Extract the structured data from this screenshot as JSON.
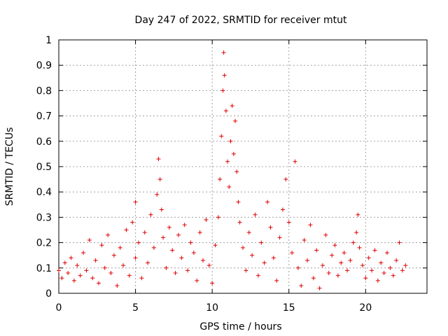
{
  "chart_data": {
    "type": "scatter",
    "title": "Day 247 of 2022, SRMTID for receiver mtut",
    "xlabel": "GPS time / hours",
    "ylabel": "SRMTID / TECUs",
    "xlim": [
      0,
      24
    ],
    "ylim": [
      0,
      1
    ],
    "xticks": [
      0,
      5,
      10,
      15,
      20
    ],
    "xtick_labels": [
      "0",
      "5",
      "10",
      "15",
      "20"
    ],
    "yticks": [
      0,
      0.1,
      0.2,
      0.3,
      0.4,
      0.5,
      0.6,
      0.7,
      0.8,
      0.9,
      1
    ],
    "ytick_labels": [
      "0",
      "0.1",
      "0.2",
      "0.3",
      "0.4",
      "0.5",
      "0.6",
      "0.7",
      "0.8",
      "0.9",
      "1"
    ],
    "grid": true,
    "marker": "+",
    "color": "#e00000",
    "series": [
      {
        "name": "SRMTID",
        "points": [
          [
            0.0,
            0.09
          ],
          [
            0.2,
            0.06
          ],
          [
            0.4,
            0.12
          ],
          [
            0.6,
            0.08
          ],
          [
            0.8,
            0.14
          ],
          [
            1.0,
            0.05
          ],
          [
            1.2,
            0.11
          ],
          [
            1.4,
            0.07
          ],
          [
            1.6,
            0.16
          ],
          [
            1.8,
            0.09
          ],
          [
            2.0,
            0.21
          ],
          [
            2.2,
            0.06
          ],
          [
            2.4,
            0.13
          ],
          [
            2.6,
            0.04
          ],
          [
            2.8,
            0.19
          ],
          [
            3.0,
            0.1
          ],
          [
            3.2,
            0.23
          ],
          [
            3.4,
            0.08
          ],
          [
            3.6,
            0.15
          ],
          [
            3.8,
            0.03
          ],
          [
            4.0,
            0.18
          ],
          [
            4.2,
            0.11
          ],
          [
            4.4,
            0.25
          ],
          [
            4.6,
            0.07
          ],
          [
            4.8,
            0.28
          ],
          [
            5.0,
            0.14
          ],
          [
            5.0,
            0.36
          ],
          [
            5.2,
            0.2
          ],
          [
            5.4,
            0.06
          ],
          [
            5.6,
            0.24
          ],
          [
            5.8,
            0.12
          ],
          [
            6.0,
            0.31
          ],
          [
            6.2,
            0.18
          ],
          [
            6.4,
            0.39
          ],
          [
            6.5,
            0.53
          ],
          [
            6.6,
            0.45
          ],
          [
            6.7,
            0.33
          ],
          [
            6.8,
            0.22
          ],
          [
            7.0,
            0.1
          ],
          [
            7.2,
            0.26
          ],
          [
            7.4,
            0.17
          ],
          [
            7.6,
            0.08
          ],
          [
            7.8,
            0.23
          ],
          [
            8.0,
            0.14
          ],
          [
            8.2,
            0.27
          ],
          [
            8.4,
            0.09
          ],
          [
            8.6,
            0.2
          ],
          [
            8.8,
            0.16
          ],
          [
            9.0,
            0.05
          ],
          [
            9.2,
            0.24
          ],
          [
            9.4,
            0.13
          ],
          [
            9.6,
            0.29
          ],
          [
            9.8,
            0.11
          ],
          [
            10.0,
            0.04
          ],
          [
            10.2,
            0.19
          ],
          [
            10.4,
            0.3
          ],
          [
            10.5,
            0.45
          ],
          [
            10.6,
            0.62
          ],
          [
            10.7,
            0.8
          ],
          [
            10.75,
            0.95
          ],
          [
            10.8,
            0.86
          ],
          [
            10.9,
            0.72
          ],
          [
            11.0,
            0.52
          ],
          [
            11.1,
            0.42
          ],
          [
            11.2,
            0.6
          ],
          [
            11.3,
            0.74
          ],
          [
            11.4,
            0.55
          ],
          [
            11.5,
            0.68
          ],
          [
            11.6,
            0.48
          ],
          [
            11.7,
            0.36
          ],
          [
            11.8,
            0.28
          ],
          [
            12.0,
            0.18
          ],
          [
            12.2,
            0.09
          ],
          [
            12.4,
            0.24
          ],
          [
            12.6,
            0.15
          ],
          [
            12.8,
            0.31
          ],
          [
            13.0,
            0.07
          ],
          [
            13.2,
            0.2
          ],
          [
            13.4,
            0.12
          ],
          [
            13.6,
            0.36
          ],
          [
            13.8,
            0.26
          ],
          [
            14.0,
            0.14
          ],
          [
            14.2,
            0.05
          ],
          [
            14.4,
            0.22
          ],
          [
            14.6,
            0.33
          ],
          [
            14.8,
            0.45
          ],
          [
            15.0,
            0.28
          ],
          [
            15.2,
            0.16
          ],
          [
            15.4,
            0.52
          ],
          [
            15.6,
            0.1
          ],
          [
            15.8,
            0.03
          ],
          [
            16.0,
            0.21
          ],
          [
            16.2,
            0.13
          ],
          [
            16.4,
            0.27
          ],
          [
            16.6,
            0.06
          ],
          [
            16.8,
            0.17
          ],
          [
            17.0,
            0.02
          ],
          [
            17.2,
            0.11
          ],
          [
            17.4,
            0.23
          ],
          [
            17.6,
            0.08
          ],
          [
            17.8,
            0.15
          ],
          [
            18.0,
            0.19
          ],
          [
            18.2,
            0.07
          ],
          [
            18.4,
            0.12
          ],
          [
            18.6,
            0.16
          ],
          [
            18.8,
            0.09
          ],
          [
            19.0,
            0.13
          ],
          [
            19.2,
            0.2
          ],
          [
            19.4,
            0.24
          ],
          [
            19.5,
            0.31
          ],
          [
            19.6,
            0.18
          ],
          [
            19.8,
            0.11
          ],
          [
            20.0,
            0.06
          ],
          [
            20.2,
            0.14
          ],
          [
            20.4,
            0.09
          ],
          [
            20.6,
            0.17
          ],
          [
            20.8,
            0.05
          ],
          [
            21.0,
            0.12
          ],
          [
            21.2,
            0.08
          ],
          [
            21.4,
            0.16
          ],
          [
            21.6,
            0.1
          ],
          [
            21.8,
            0.07
          ],
          [
            22.0,
            0.13
          ],
          [
            22.2,
            0.2
          ],
          [
            22.4,
            0.09
          ],
          [
            22.6,
            0.11
          ]
        ]
      }
    ]
  }
}
